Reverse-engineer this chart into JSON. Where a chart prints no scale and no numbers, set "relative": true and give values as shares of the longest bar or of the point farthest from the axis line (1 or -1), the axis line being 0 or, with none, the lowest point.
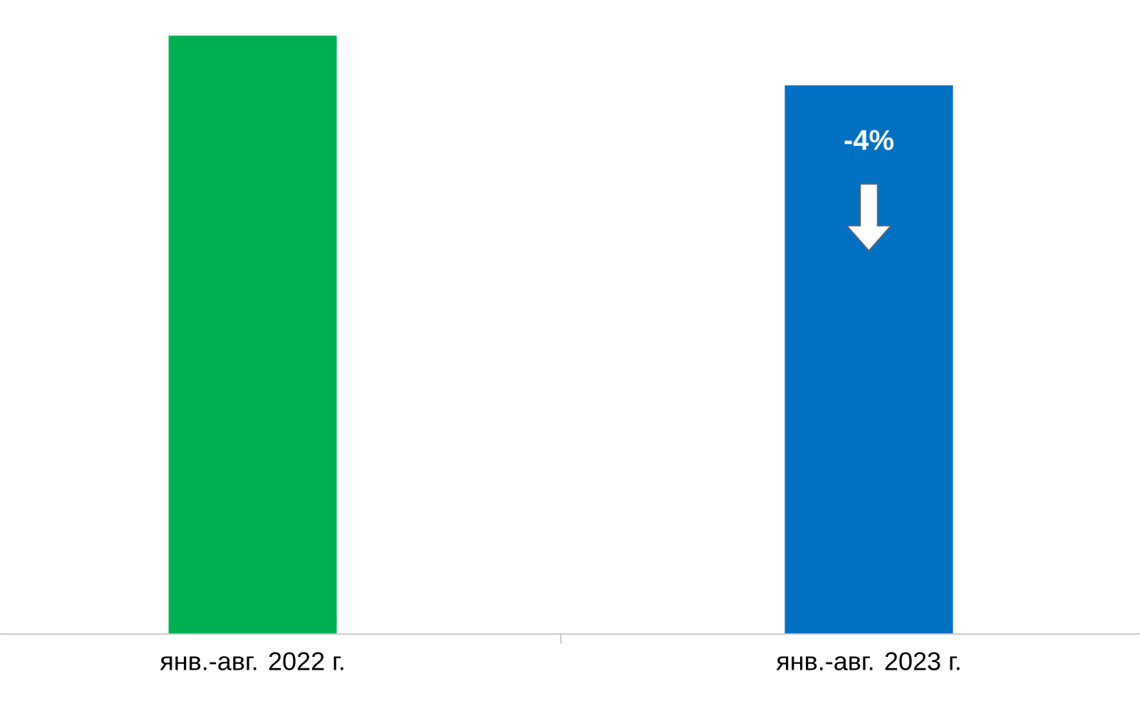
{
  "chart_data": {
    "type": "bar",
    "relative": true,
    "categories": [
      "янв.-авг. 2022 г.",
      "янв.-авг. 2023 г."
    ],
    "values": [
      1,
      0.917
    ],
    "colors": [
      "#00b050",
      "#0070c0"
    ],
    "annotations": [
      "-4%"
    ]
  }
}
